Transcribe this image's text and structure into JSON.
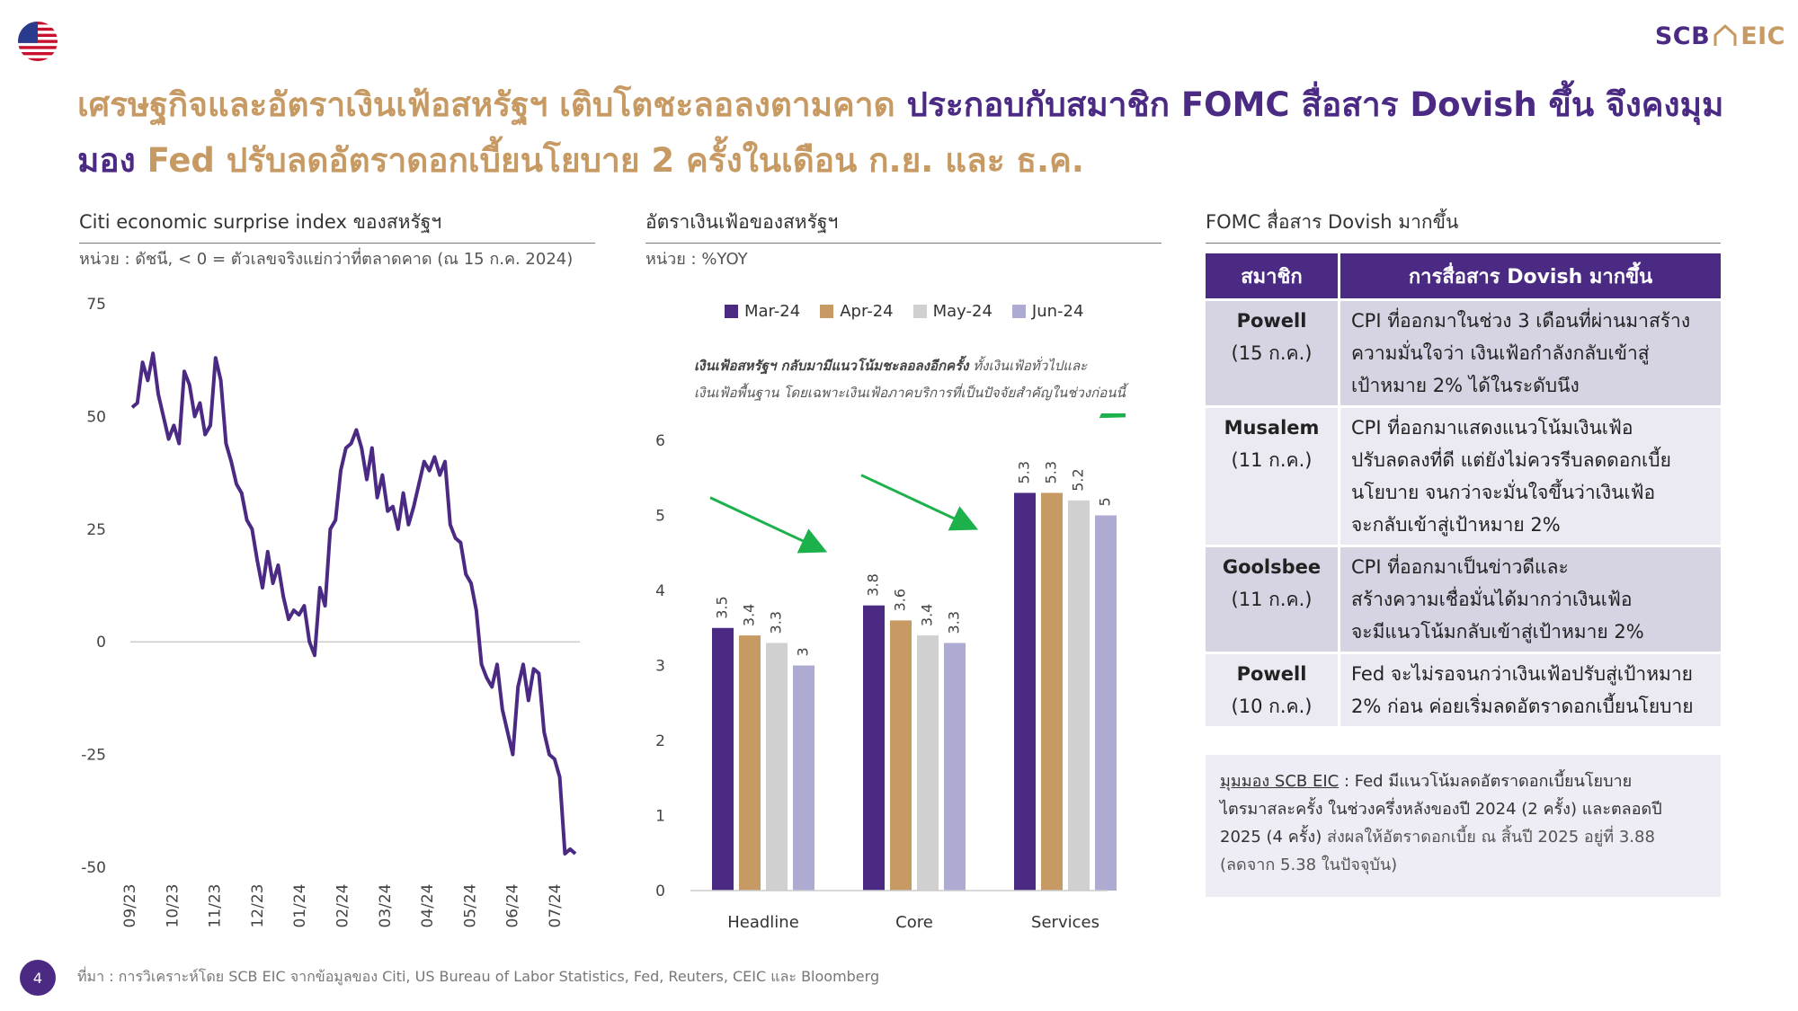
{
  "header": {
    "logo_scb": "SCB",
    "logo_eic": "EIC",
    "headline_part1": "เศรษฐกิจและอัตราเงินเฟ้อสหรัฐฯ เติบโตชะลอลงตามคาด ",
    "headline_part2": "ประกอบกับสมาชิก FOMC สื่อสาร Dovish ขึ้น จึงคงมุมมอง ",
    "headline_part3": "Fed ปรับลดอัตราดอกเบี้ยนโยบาย 2 ครั้งในเดือน ก.ย. และ ธ.ค."
  },
  "colors": {
    "purple": "#4b2a84",
    "gold": "#c79a64",
    "grey": "#d0d0d0",
    "lavender": "#adabd2",
    "arrow": "#1db14b"
  },
  "chart_data": [
    {
      "type": "line",
      "title": "Citi economic surprise index ของสหรัฐฯ",
      "subtitle": "หน่วย : ดัชนี, < 0 = ตัวเลขจริงแย่กว่าที่ตลาดคาด (ณ 15 ก.ค. 2024)",
      "ylim": [
        -50,
        75
      ],
      "yticks": [
        "75",
        "50",
        "25",
        "0",
        "-25",
        "-50"
      ],
      "xticks": [
        "09/23",
        "10/23",
        "11/23",
        "12/23",
        "01/24",
        "02/24",
        "03/24",
        "04/24",
        "05/24",
        "06/24",
        "07/24"
      ],
      "grid": false,
      "series": [
        {
          "values": [
            52,
            53,
            62,
            58,
            64,
            55,
            50,
            45,
            48,
            44,
            60,
            57,
            50,
            53,
            46,
            48,
            63,
            58,
            44,
            40,
            35,
            33,
            27,
            25,
            18,
            12,
            20,
            13,
            17,
            10,
            5,
            7,
            6,
            8,
            0,
            -3,
            12,
            8,
            25,
            27,
            38,
            43,
            44,
            47,
            43,
            36,
            43,
            32,
            37,
            29,
            30,
            25,
            33,
            26,
            30,
            35,
            40,
            38,
            41,
            37,
            40,
            26,
            23,
            22,
            15,
            13,
            7,
            -5,
            -8,
            -10,
            -5,
            -15,
            -20,
            -25,
            -10,
            -5,
            -13,
            -6,
            -7,
            -20,
            -25,
            -26,
            -30,
            -47,
            -46,
            -47
          ]
        }
      ]
    },
    {
      "type": "bar",
      "title": "อัตราเงินเฟ้อของสหรัฐฯ",
      "subtitle": "หน่วย : %YOY",
      "annotation_bold": "เงินเฟ้อสหรัฐฯ กลับมามีแนวโน้มชะลอลงอีกครั้ง",
      "annotation_rest1": " ทั้งเงินเฟ้อทั่วไปและ",
      "annotation_line2": "เงินเฟ้อพื้นฐาน โดยเฉพาะเงินเฟ้อภาคบริการที่เป็นปัจจัยสำคัญในช่วงก่อนนี้",
      "categories": [
        "Headline",
        "Core",
        "Services"
      ],
      "ylim": [
        0,
        6
      ],
      "yticks": [
        "0",
        "1",
        "2",
        "3",
        "4",
        "5",
        "6"
      ],
      "legend": "top",
      "series": [
        {
          "name": "Mar-24",
          "values": [
            3.5,
            3.8,
            5.3
          ],
          "labels": [
            "3.5",
            "3.8",
            "5.3"
          ],
          "color": "#4b2a84"
        },
        {
          "name": "Apr-24",
          "values": [
            3.4,
            3.6,
            5.3
          ],
          "labels": [
            "3.4",
            "3.6",
            "5.3"
          ],
          "color": "#c79a64"
        },
        {
          "name": "May-24",
          "values": [
            3.3,
            3.4,
            5.2
          ],
          "labels": [
            "3.3",
            "3.4",
            "5.2"
          ],
          "color": "#d0d0d0"
        },
        {
          "name": "Jun-24",
          "values": [
            3.0,
            3.3,
            5.0
          ],
          "labels": [
            "3",
            "3.3",
            "5"
          ],
          "color": "#adabd2"
        }
      ]
    }
  ],
  "fomc": {
    "title": "FOMC สื่อสาร Dovish มากขึ้น",
    "col_member": "สมาชิก",
    "col_comm": "การสื่อสาร Dovish มากขึ้น",
    "rows": [
      {
        "name": "Powell",
        "date": "(15 ก.ค.)",
        "lines": [
          "CPI ที่ออกมาในช่วง 3 เดือนที่ผ่านมาสร้าง",
          "ความมั่นใจว่า เงินเฟ้อกำลังกลับเข้าสู่",
          "เป้าหมาย 2% ได้ในระดับนึง"
        ]
      },
      {
        "name": "Musalem",
        "date": "(11 ก.ค.)",
        "lines": [
          "CPI ที่ออกมาแสดงแนวโน้มเงินเฟ้อ",
          "ปรับลดลงที่ดี แต่ยังไม่ควรรีบลดดอกเบี้ย",
          "นโยบาย จนกว่าจะมั่นใจขึ้นว่าเงินเฟ้อ",
          "จะกลับเข้าสู่เป้าหมาย 2%"
        ]
      },
      {
        "name": "Goolsbee",
        "date": "(11 ก.ค.)",
        "lines": [
          "CPI ที่ออกมาเป็นข่าวดีและ",
          "สร้างความเชื่อมั่นได้มากว่าเงินเฟ้อ",
          "จะมีแนวโน้มกลับเข้าสู่เป้าหมาย 2%"
        ]
      },
      {
        "name": "Powell",
        "date": "(10 ก.ค.)",
        "lines": [
          "Fed จะไม่รอจนกว่าเงินเฟ้อปรับสู่เป้าหมาย",
          "2% ก่อน ค่อยเริ่มลดอัตราดอกเบี้ยนโยบาย"
        ]
      }
    ]
  },
  "view": {
    "label": "มุมมอง SCB EIC",
    "line1": " : Fed มีแนวโน้มลดอัตราดอกเบี้ยนโยบาย",
    "line2": "ไตรมาสละครั้ง ในช่วงครึ่งหลังของปี 2024 (2 ครั้ง) และตลอดปี",
    "line3_strong": "2025 (4 ครั้ง)",
    "line3_rest": " ส่งผลให้อัตราดอกเบี้ย ณ สิ้นปี 2025 อยู่ที่ 3.88",
    "line4": "(ลดจาก 5.38 ในปัจจุบัน)"
  },
  "footer": {
    "page": "4",
    "source": "ที่มา : การวิเคราะห์โดย SCB EIC จากข้อมูลของ Citi, US Bureau of Labor Statistics, Fed, Reuters, CEIC และ Bloomberg"
  }
}
